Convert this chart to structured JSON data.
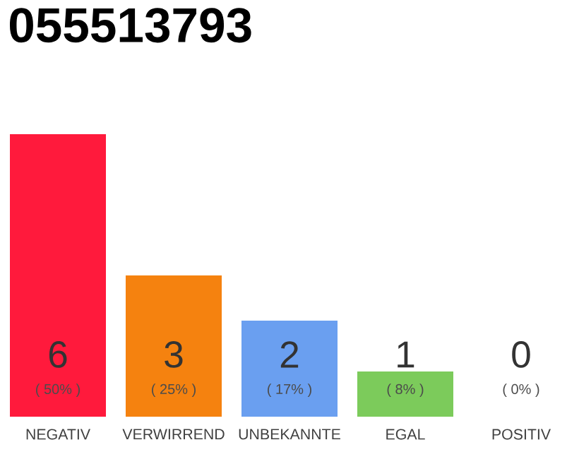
{
  "chart_data": {
    "type": "bar",
    "title": "055513793",
    "categories": [
      "NEGATIV",
      "VERWIRREND",
      "UNBEKANNTE",
      "EGAL",
      "POSITIV"
    ],
    "values": [
      50,
      25,
      17,
      8,
      0
    ],
    "colors": [
      "#ff1a3c",
      "#f5820f",
      "#6a9ff0",
      "#7ccb5b",
      "#cccccc"
    ],
    "value_labels": [
      "( 50% )",
      "( 25% )",
      "( 17% )",
      "( 8% )",
      "( 0% )"
    ],
    "annotations": [
      "6",
      "3",
      "2",
      "1",
      "0"
    ],
    "ylim": [
      0,
      50
    ],
    "tick_labels": "x"
  }
}
